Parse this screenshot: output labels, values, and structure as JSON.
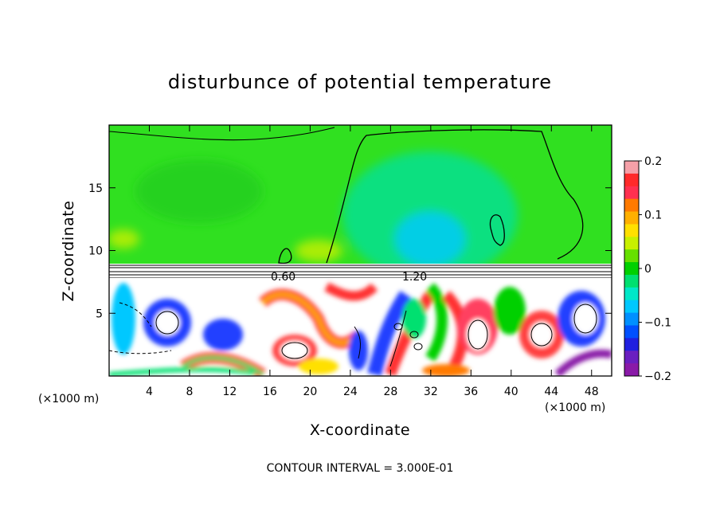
{
  "chart_data": {
    "type": "heatmap",
    "title": "disturbunce of potential temperature",
    "xlabel": "X-coordinate",
    "ylabel": "Z-coordinate",
    "x_unit": "(×1000 m)",
    "z_unit": "(×1000 m)",
    "xlim": [
      0,
      50
    ],
    "zlim": [
      0,
      20
    ],
    "x_ticks": [
      4,
      8,
      12,
      16,
      20,
      24,
      28,
      32,
      36,
      40,
      44,
      48
    ],
    "z_ticks": [
      5,
      10,
      15
    ],
    "colorbar": {
      "range": [
        -0.2,
        0.2
      ],
      "tick_values": [
        0.2,
        0.1,
        0,
        -0.1,
        -0.2
      ],
      "tick_labels": [
        "0.2",
        "0.1",
        "0",
        "−0.1",
        "−0.2"
      ],
      "colors": [
        "#f5a0a8",
        "#ff2a2a",
        "#ff3050",
        "#ff7a00",
        "#ffb000",
        "#ffe000",
        "#c8f000",
        "#66e000",
        "#00d000",
        "#00e070",
        "#00e8c8",
        "#00c8ff",
        "#0090ff",
        "#0050ff",
        "#2020e0",
        "#6a1fc0",
        "#8a1aa8"
      ]
    },
    "contour_labels": [
      "0.60",
      "1.20"
    ],
    "contour_interval_text": "CONTOUR INTERVAL = 3.000E-01",
    "grid": false
  }
}
